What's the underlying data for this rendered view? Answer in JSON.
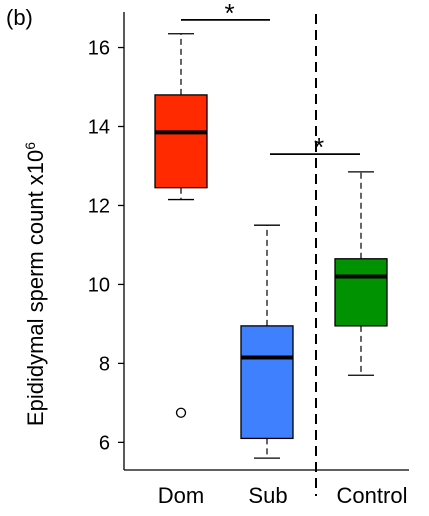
{
  "panel_label": "(b)",
  "chart_data": {
    "type": "boxplot",
    "ylabel": "Epididymal sperm count x10",
    "ylabel_superscript": "6",
    "ylim": [
      5.3,
      16.9
    ],
    "yticks": [
      6,
      8,
      10,
      12,
      14,
      16
    ],
    "categories": [
      "Dom",
      "Sub",
      "Control"
    ],
    "boxes": [
      {
        "category": "Dom",
        "color": "#ff2a00",
        "whisker_low": 12.15,
        "q1": 12.45,
        "median": 13.85,
        "q3": 14.8,
        "whisker_high": 16.35,
        "outliers": [
          6.75
        ]
      },
      {
        "category": "Sub",
        "color": "#3f80ff",
        "whisker_low": 5.6,
        "q1": 6.1,
        "median": 8.15,
        "q3": 8.95,
        "whisker_high": 11.5,
        "outliers": []
      },
      {
        "category": "Control",
        "color": "#009200",
        "whisker_low": 7.7,
        "q1": 8.95,
        "median": 10.2,
        "q3": 10.65,
        "whisker_high": 12.85,
        "outliers": []
      }
    ],
    "significance": [
      {
        "from": 0,
        "to": 1,
        "y": 16.7,
        "label": "*"
      },
      {
        "from": 1,
        "to": 2,
        "y": 13.3,
        "label": "*"
      }
    ],
    "separator_after_category": 1,
    "separator_style": "dashed",
    "grid": false
  }
}
